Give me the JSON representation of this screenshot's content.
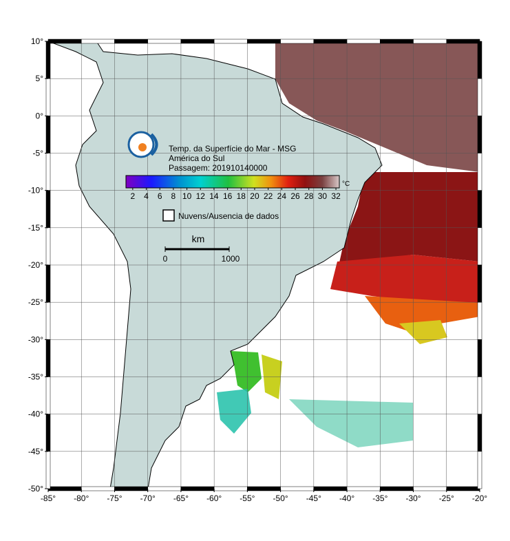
{
  "map": {
    "lonlim": [
      -85,
      -20
    ],
    "latlim": [
      -50,
      10
    ],
    "lon_ticks": [
      {
        "value": -85,
        "label": "-85°"
      },
      {
        "value": -80,
        "label": "-80°"
      },
      {
        "value": -75,
        "label": "-75°"
      },
      {
        "value": -70,
        "label": "-70°"
      },
      {
        "value": -65,
        "label": "-65°"
      },
      {
        "value": -60,
        "label": "-60°"
      },
      {
        "value": -55,
        "label": "-55°"
      },
      {
        "value": -50,
        "label": "-50°"
      },
      {
        "value": -45,
        "label": "-45°"
      },
      {
        "value": -40,
        "label": "-40°"
      },
      {
        "value": -35,
        "label": "-35°"
      },
      {
        "value": -30,
        "label": "-30°"
      },
      {
        "value": -25,
        "label": "-25°"
      },
      {
        "value": -20,
        "label": "-20°"
      }
    ],
    "lat_ticks": [
      {
        "value": 10,
        "label": "10°"
      },
      {
        "value": 5,
        "label": "5°"
      },
      {
        "value": 0,
        "label": "0°"
      },
      {
        "value": -5,
        "label": "-5°"
      },
      {
        "value": -10,
        "label": "-10°"
      },
      {
        "value": -15,
        "label": "-15°"
      },
      {
        "value": -20,
        "label": "-20°"
      },
      {
        "value": -25,
        "label": "-25°"
      },
      {
        "value": -30,
        "label": "-30°"
      },
      {
        "value": -35,
        "label": "-35°"
      },
      {
        "value": -40,
        "label": "-40°"
      },
      {
        "value": -45,
        "label": "-45°"
      },
      {
        "value": -50,
        "label": "-50°"
      }
    ],
    "grid": true
  },
  "legend": {
    "title_lines": [
      "Temp. da Superfície do Mar - MSG",
      "América do Sul",
      "Passagem: 201910140000"
    ],
    "colorbar": {
      "range": [
        1,
        32.5
      ],
      "ticks": [
        2,
        4,
        6,
        8,
        10,
        12,
        14,
        16,
        18,
        20,
        22,
        24,
        26,
        28,
        30,
        32
      ],
      "unit": "°C"
    },
    "no_data_label": "Nuvens/Ausencia de dados",
    "scale_bar": {
      "unit": "km",
      "start_label": "0",
      "end_label": "1000"
    }
  }
}
